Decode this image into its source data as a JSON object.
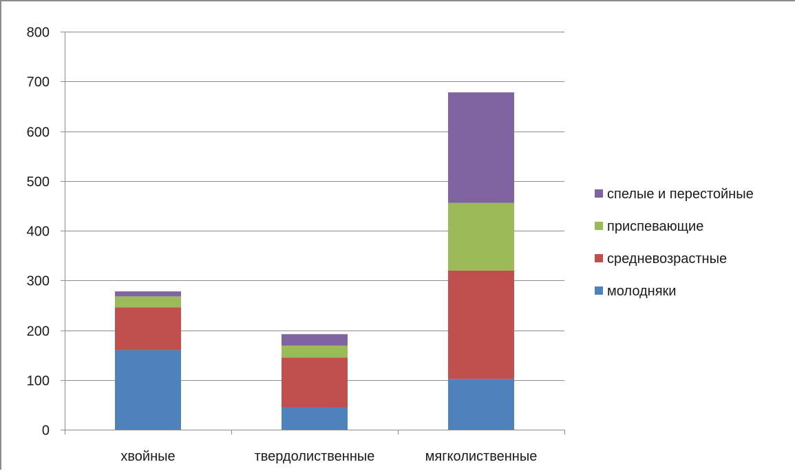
{
  "chart_data": {
    "type": "bar",
    "stacked": true,
    "categories": [
      "хвойные",
      "твердолиственные",
      "мягколиственные"
    ],
    "series": [
      {
        "name": "молодняки",
        "color": "#4f81bd",
        "values": [
          160,
          45,
          102
        ]
      },
      {
        "name": "средневозрастные",
        "color": "#c0504d",
        "values": [
          86,
          100,
          218
        ]
      },
      {
        "name": "приспевающие",
        "color": "#9bbb59",
        "values": [
          22,
          24,
          136
        ]
      },
      {
        "name": "спелые и перестойные",
        "color": "#8064a2",
        "values": [
          10,
          23,
          222
        ]
      }
    ],
    "yticks": [
      "0",
      "100",
      "200",
      "300",
      "400",
      "500",
      "600",
      "700",
      "800"
    ],
    "ylim": [
      0,
      800
    ],
    "grid": true,
    "legend_position": "right",
    "legend_order": [
      "спелые и перестойные",
      "приспевающие",
      "средневозрастные",
      "молодняки"
    ]
  }
}
